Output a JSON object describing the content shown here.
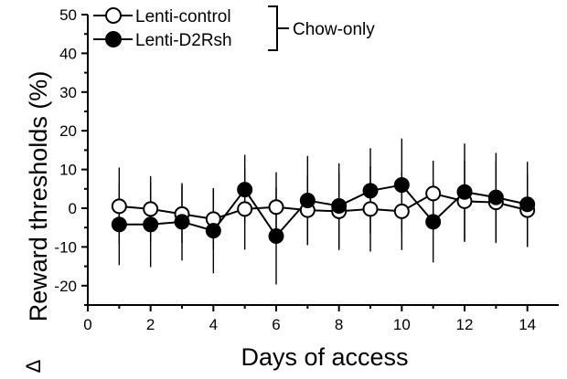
{
  "chart_data": {
    "type": "line",
    "title": "",
    "xlabel": "Days of access",
    "ylabel": "Reward  thresholds (%)",
    "ylabel_prefix": "Δ",
    "xlim": [
      0,
      15
    ],
    "ylim": [
      -25,
      50
    ],
    "xticks": [
      0,
      2,
      4,
      6,
      8,
      10,
      12,
      14
    ],
    "yticks": [
      -20,
      -10,
      0,
      10,
      20,
      30,
      40,
      50
    ],
    "grid": false,
    "legend_position": "top-left",
    "legend_group_label": "Chow-only",
    "x": [
      1,
      2,
      3,
      4,
      5,
      6,
      7,
      8,
      9,
      10,
      11,
      12,
      13,
      14
    ],
    "series": [
      {
        "name": "Lenti-control",
        "marker": "open-circle",
        "values": [
          0.5,
          -0.2,
          -1.5,
          -2.8,
          -0.2,
          0.3,
          -0.5,
          -0.8,
          -0.2,
          -0.8,
          3.8,
          1.8,
          1.5,
          -0.5
        ],
        "error": [
          10,
          8.5,
          7.5,
          8,
          10.5,
          9,
          9,
          10,
          11,
          10,
          8.5,
          10.5,
          10.5,
          9.5
        ]
      },
      {
        "name": "Lenti-D2Rsh",
        "marker": "filled-circle",
        "values": [
          -4.2,
          -4.2,
          -3.5,
          -5.8,
          4.8,
          -7.2,
          2.0,
          0.6,
          4.5,
          6.0,
          -3.5,
          4.2,
          2.8,
          1.0
        ],
        "error": [
          10.5,
          11,
          10,
          11,
          9,
          12.5,
          11.5,
          11,
          11,
          12,
          10.5,
          12.5,
          11.5,
          11
        ]
      }
    ]
  }
}
